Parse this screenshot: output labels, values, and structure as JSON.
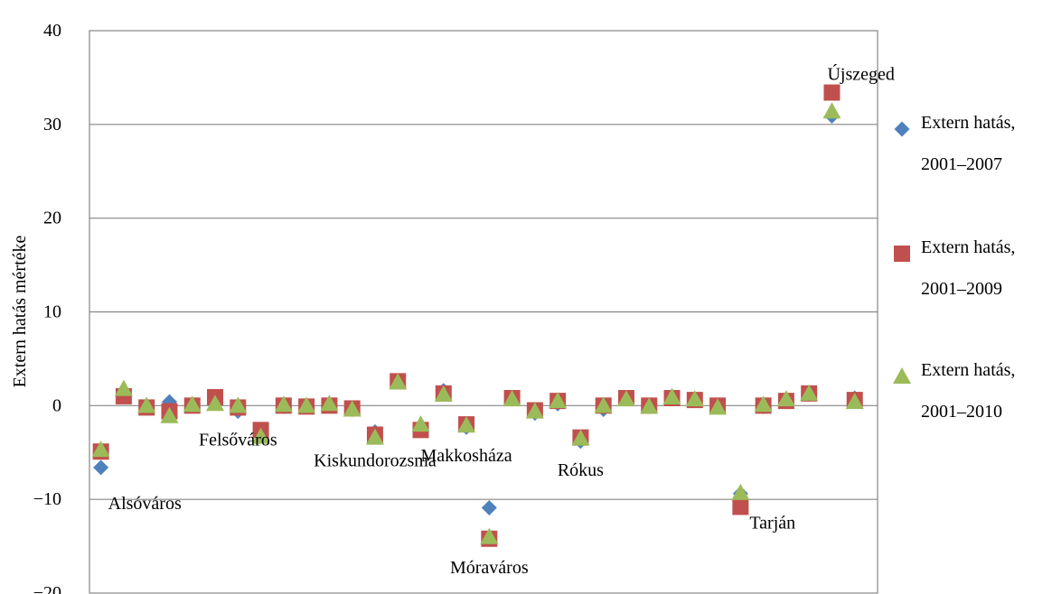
{
  "chart_data": {
    "type": "scatter",
    "title": "",
    "xlabel": "",
    "ylabel": "Extern hatás mértéke",
    "ylim": [
      -20,
      40
    ],
    "yticks": [
      -20,
      -10,
      0,
      10,
      20,
      30,
      40
    ],
    "ytick_labels": [
      "−20",
      "−10",
      "0",
      "10",
      "20",
      "30",
      "40"
    ],
    "x_range": [
      0.5,
      35
    ],
    "grid": "horizontal",
    "legend_position": "right",
    "series": [
      {
        "name": "Extern hatás, 2001–2007",
        "marker": "diamond",
        "color": "#4F81BD",
        "x": [
          1,
          2,
          3,
          4,
          5,
          6,
          7,
          8,
          9,
          10,
          11,
          12,
          13,
          14,
          15,
          16,
          17,
          18,
          19,
          20,
          21,
          22,
          23,
          24,
          25,
          26,
          27,
          28,
          29,
          30,
          31,
          32,
          33,
          34
        ],
        "y": [
          -6.6,
          1.0,
          -0.2,
          0.4,
          0.0,
          0.6,
          -0.6,
          -2.8,
          -0.1,
          -0.1,
          0.2,
          -0.4,
          -2.8,
          2.5,
          -2.3,
          1.6,
          -2.3,
          -10.9,
          0.8,
          -0.8,
          0.2,
          -3.8,
          -0.4,
          0.8,
          -0.1,
          1.0,
          0.6,
          -0.1,
          -9.4,
          -0.1,
          0.6,
          1.2,
          30.9,
          0.8
        ]
      },
      {
        "name": "Extern hatás, 2001–2009",
        "marker": "square",
        "color": "#C0504D",
        "x": [
          1,
          2,
          3,
          4,
          5,
          6,
          7,
          8,
          9,
          10,
          11,
          12,
          13,
          14,
          15,
          16,
          17,
          18,
          19,
          20,
          21,
          22,
          23,
          24,
          25,
          26,
          27,
          28,
          29,
          30,
          31,
          32,
          33,
          34
        ],
        "y": [
          -4.9,
          1.0,
          -0.2,
          -0.6,
          0.0,
          0.9,
          -0.2,
          -2.6,
          0.0,
          -0.1,
          0.0,
          -0.3,
          -3.1,
          2.6,
          -2.6,
          1.3,
          -2.0,
          -14.2,
          0.8,
          -0.5,
          0.5,
          -3.4,
          0.0,
          0.8,
          0.0,
          0.8,
          0.6,
          0.0,
          -10.8,
          0.0,
          0.5,
          1.3,
          33.4,
          0.6
        ]
      },
      {
        "name": "Extern hatás, 2001–2010",
        "marker": "triangle",
        "color": "#9BBB59",
        "x": [
          1,
          2,
          3,
          4,
          5,
          6,
          7,
          8,
          9,
          10,
          11,
          12,
          13,
          14,
          15,
          16,
          17,
          18,
          19,
          20,
          21,
          22,
          23,
          24,
          25,
          26,
          27,
          28,
          29,
          30,
          31,
          32,
          33,
          34
        ],
        "y": [
          -4.7,
          1.8,
          0.0,
          -1.1,
          0.1,
          0.2,
          0.0,
          -3.3,
          0.1,
          0.0,
          0.2,
          -0.4,
          -3.4,
          2.5,
          -2.0,
          1.2,
          -2.1,
          -14.0,
          0.7,
          -0.6,
          0.5,
          -3.5,
          0.0,
          0.7,
          -0.1,
          0.9,
          0.7,
          -0.2,
          -9.3,
          0.1,
          0.7,
          1.3,
          31.4,
          0.4
        ]
      }
    ],
    "annotations": [
      {
        "text": "Alsóváros",
        "x": 1,
        "y": -6.6,
        "anchor": "below-right"
      },
      {
        "text": "Felsőváros",
        "x": 7,
        "y": -0.6,
        "anchor": "below"
      },
      {
        "text": "Kiskundorozsma",
        "x": 13,
        "y": -2.8,
        "anchor": "below"
      },
      {
        "text": "Makkosháza",
        "x": 17,
        "y": -2.3,
        "anchor": "below"
      },
      {
        "text": "Móraváros",
        "x": 18,
        "y": -14.2,
        "anchor": "below"
      },
      {
        "text": "Rókus",
        "x": 22,
        "y": -3.8,
        "anchor": "below"
      },
      {
        "text": "Tarján",
        "x": 29,
        "y": -10.8,
        "anchor": "right"
      },
      {
        "text": "Újszeged",
        "x": 33,
        "y": 33.4,
        "anchor": "above"
      }
    ]
  }
}
